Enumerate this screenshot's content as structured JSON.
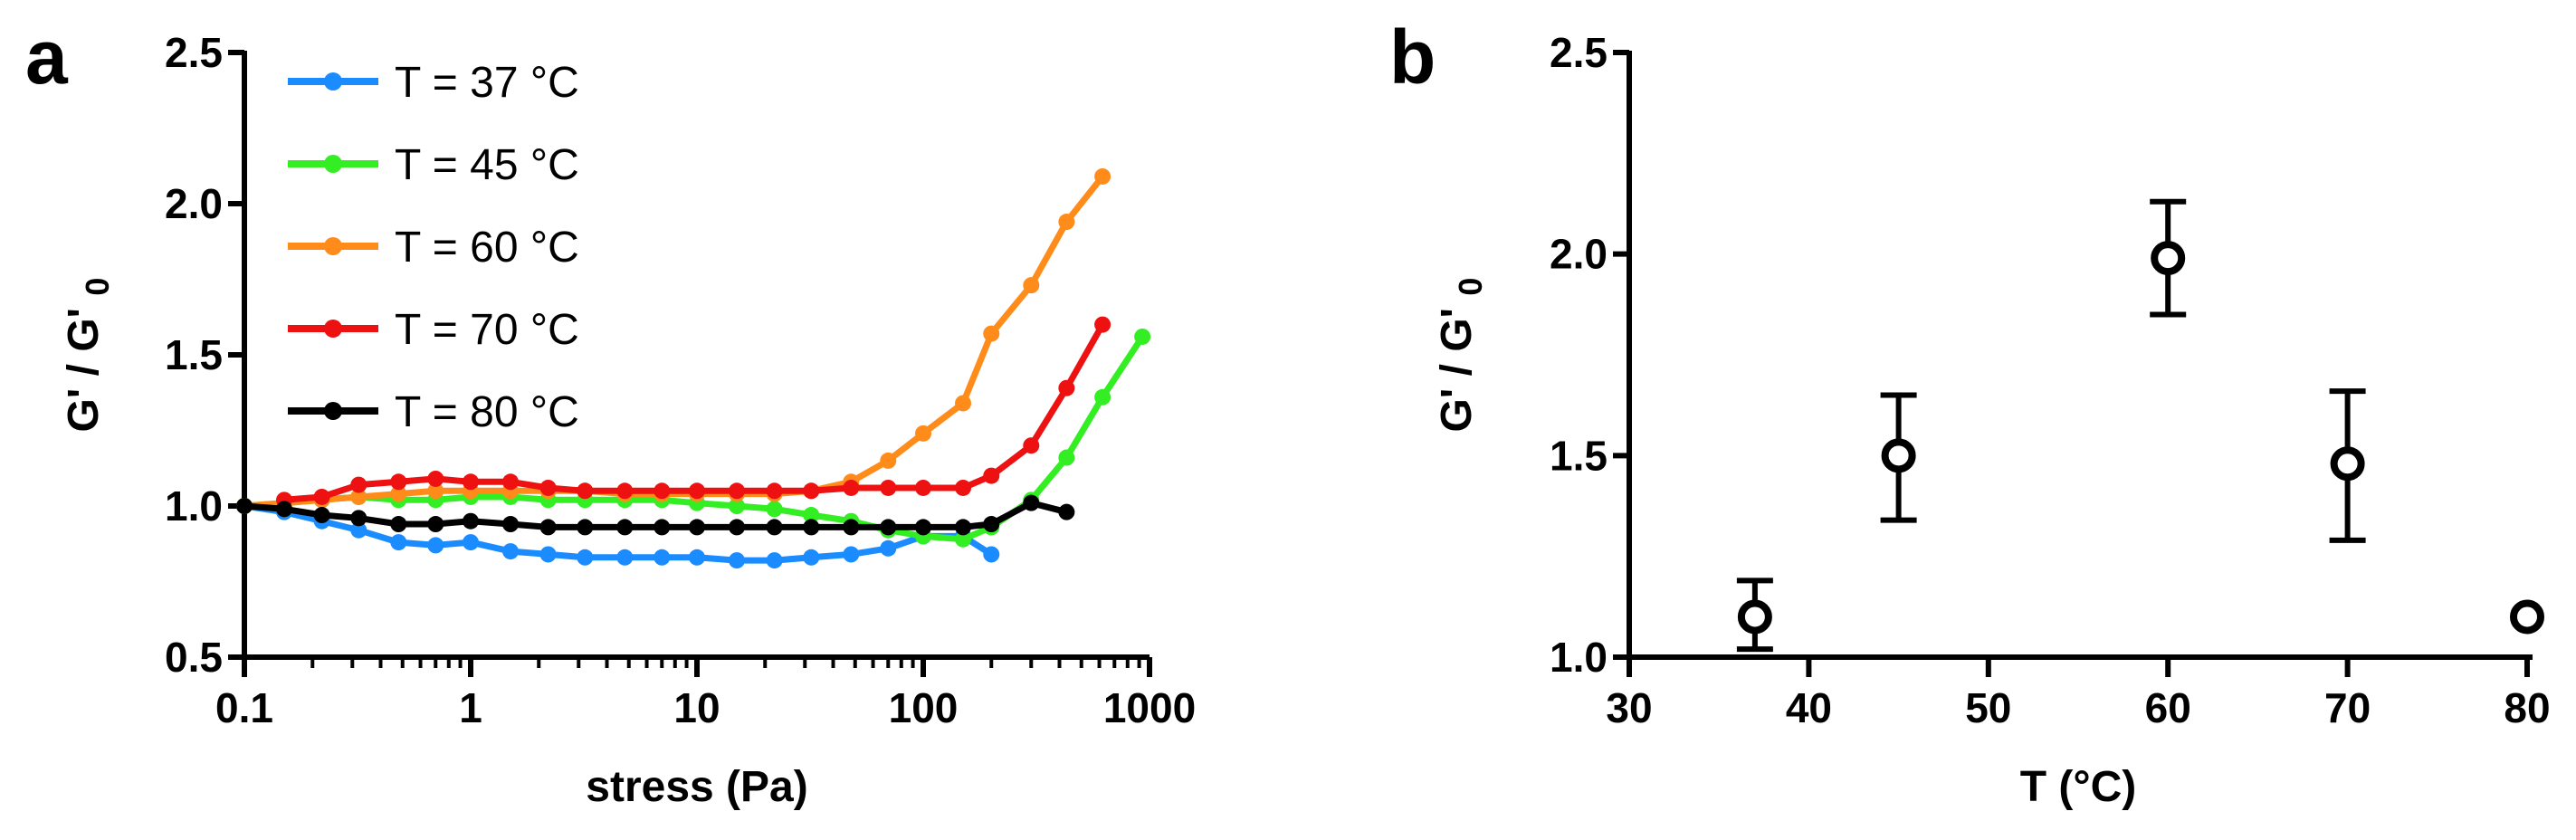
{
  "chart_data": [
    {
      "panel": "a",
      "type": "line",
      "xscale": "log",
      "xlabel": "stress (Pa)",
      "ylabel": "G' / G'",
      "ylabel_sub": "0",
      "xlim": [
        0.1,
        1000
      ],
      "ylim": [
        0.5,
        2.5
      ],
      "xticks": [
        0.1,
        1,
        10,
        100,
        1000
      ],
      "xtick_labels": [
        "0.1",
        "1",
        "10",
        "100",
        "1000"
      ],
      "yticks": [
        0.5,
        1.0,
        1.5,
        2.0,
        2.5
      ],
      "ytick_labels": [
        "0.5",
        "1.0",
        "1.5",
        "2.0",
        "2.5"
      ],
      "legend_position": "top-left",
      "series": [
        {
          "name": "T = 37 °C",
          "color": "#1a8cff",
          "x": [
            0.1,
            0.15,
            0.22,
            0.32,
            0.48,
            0.7,
            1.0,
            1.5,
            2.2,
            3.2,
            4.8,
            7.0,
            10,
            15,
            22,
            32,
            48,
            70,
            100,
            150,
            200
          ],
          "y": [
            1.0,
            0.98,
            0.95,
            0.92,
            0.88,
            0.87,
            0.88,
            0.85,
            0.84,
            0.83,
            0.83,
            0.83,
            0.83,
            0.82,
            0.82,
            0.83,
            0.84,
            0.86,
            0.9,
            0.9,
            0.84
          ]
        },
        {
          "name": "T = 45 °C",
          "color": "#33ee22",
          "x": [
            0.1,
            0.15,
            0.22,
            0.32,
            0.48,
            0.7,
            1.0,
            1.5,
            2.2,
            3.2,
            4.8,
            7.0,
            10,
            15,
            22,
            32,
            48,
            70,
            100,
            150,
            200,
            300,
            430,
            620,
            930
          ],
          "y": [
            1.0,
            1.01,
            1.02,
            1.03,
            1.02,
            1.02,
            1.03,
            1.03,
            1.02,
            1.02,
            1.02,
            1.02,
            1.01,
            1.0,
            0.99,
            0.97,
            0.95,
            0.92,
            0.9,
            0.89,
            0.93,
            1.02,
            1.16,
            1.36,
            1.56
          ]
        },
        {
          "name": "T = 60 °C",
          "color": "#ff8c1a",
          "x": [
            0.1,
            0.15,
            0.22,
            0.32,
            0.48,
            0.7,
            1.0,
            1.5,
            2.2,
            3.2,
            4.8,
            7.0,
            10,
            15,
            22,
            32,
            48,
            70,
            100,
            150,
            200,
            300,
            430,
            620
          ],
          "y": [
            1.0,
            1.01,
            1.02,
            1.03,
            1.04,
            1.05,
            1.05,
            1.05,
            1.05,
            1.05,
            1.04,
            1.04,
            1.04,
            1.04,
            1.04,
            1.05,
            1.08,
            1.15,
            1.24,
            1.34,
            1.57,
            1.73,
            1.94,
            2.09
          ]
        },
        {
          "name": "T = 70 °C",
          "color": "#ee1111",
          "x": [
            0.15,
            0.22,
            0.32,
            0.48,
            0.7,
            1.0,
            1.5,
            2.2,
            3.2,
            4.8,
            7.0,
            10,
            15,
            22,
            32,
            48,
            70,
            100,
            150,
            200,
            300,
            430,
            620
          ],
          "y": [
            1.02,
            1.03,
            1.07,
            1.08,
            1.09,
            1.08,
            1.08,
            1.06,
            1.05,
            1.05,
            1.05,
            1.05,
            1.05,
            1.05,
            1.05,
            1.06,
            1.06,
            1.06,
            1.06,
            1.1,
            1.2,
            1.39,
            1.6
          ]
        },
        {
          "name": "T = 80 °C",
          "color": "#000000",
          "x": [
            0.1,
            0.15,
            0.22,
            0.32,
            0.48,
            0.7,
            1.0,
            1.5,
            2.2,
            3.2,
            4.8,
            7.0,
            10,
            15,
            22,
            32,
            48,
            70,
            100,
            150,
            200,
            300,
            430
          ],
          "y": [
            1.0,
            0.99,
            0.97,
            0.96,
            0.94,
            0.94,
            0.95,
            0.94,
            0.93,
            0.93,
            0.93,
            0.93,
            0.93,
            0.93,
            0.93,
            0.93,
            0.93,
            0.93,
            0.93,
            0.93,
            0.94,
            1.01,
            0.98
          ]
        }
      ]
    },
    {
      "panel": "b",
      "type": "scatter",
      "xlabel": "T (°C)",
      "ylabel": "G' / G'",
      "ylabel_sub": "0",
      "xlim": [
        30,
        80
      ],
      "ylim": [
        1.0,
        2.5
      ],
      "xticks": [
        30,
        40,
        50,
        60,
        70,
        80
      ],
      "xtick_labels": [
        "30",
        "40",
        "50",
        "60",
        "70",
        "80"
      ],
      "yticks": [
        1.0,
        1.5,
        2.0,
        2.5
      ],
      "ytick_labels": [
        "1.0",
        "1.5",
        "2.0",
        "2.5"
      ],
      "marker": "open-circle",
      "points": [
        {
          "x": 37,
          "y": 1.1,
          "err_low": 1.02,
          "err_high": 1.19
        },
        {
          "x": 45,
          "y": 1.5,
          "err_low": 1.34,
          "err_high": 1.65
        },
        {
          "x": 60,
          "y": 1.99,
          "err_low": 1.85,
          "err_high": 2.13
        },
        {
          "x": 70,
          "y": 1.48,
          "err_low": 1.29,
          "err_high": 1.66
        },
        {
          "x": 80,
          "y": 1.1,
          "err_low": 1.1,
          "err_high": 1.1
        }
      ]
    }
  ]
}
